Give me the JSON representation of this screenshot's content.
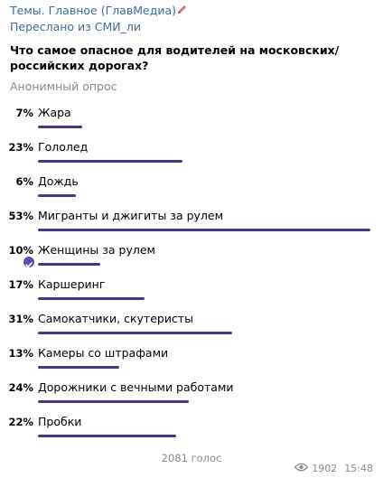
{
  "header": {
    "channel": "Темы. Главное (ГлавМедиа)",
    "forwarded": "Переслано из СМИ_ли"
  },
  "poll": {
    "question": "Что самое опасное для водителей на московских/российских дорогах?",
    "type": "Анонимный опрос",
    "options": [
      {
        "percent_label": "7%",
        "label": "Жара",
        "fraction": 0.07,
        "voted": false
      },
      {
        "percent_label": "23%",
        "label": "Гололед",
        "fraction": 0.23,
        "voted": false
      },
      {
        "percent_label": "6%",
        "label": "Дождь",
        "fraction": 0.06,
        "voted": false
      },
      {
        "percent_label": "53%",
        "label": "Мигранты и джигиты за рулем",
        "fraction": 0.53,
        "voted": false
      },
      {
        "percent_label": "10%",
        "label": "Женщины за рулем",
        "fraction": 0.1,
        "voted": true
      },
      {
        "percent_label": "17%",
        "label": "Каршеринг",
        "fraction": 0.17,
        "voted": false
      },
      {
        "percent_label": "31%",
        "label": "Самокатчики, скутеристы",
        "fraction": 0.31,
        "voted": false
      },
      {
        "percent_label": "13%",
        "label": "Камеры со штрафами",
        "fraction": 0.13,
        "voted": false
      },
      {
        "percent_label": "24%",
        "label": "Дорожники с вечными работами",
        "fraction": 0.24,
        "voted": false
      },
      {
        "percent_label": "22%",
        "label": "Пробки",
        "fraction": 0.22,
        "voted": false
      }
    ],
    "total_votes": "2081 голос"
  },
  "meta": {
    "views": "1902",
    "time": "15:48"
  },
  "colors": {
    "link": "#3c6a9e",
    "bar": "#3f3a8a",
    "check": "#5c4ea6",
    "muted": "#8a8a8a"
  },
  "icons": {
    "pen": "pen-icon",
    "check": "check-icon",
    "views": "eye-icon"
  }
}
